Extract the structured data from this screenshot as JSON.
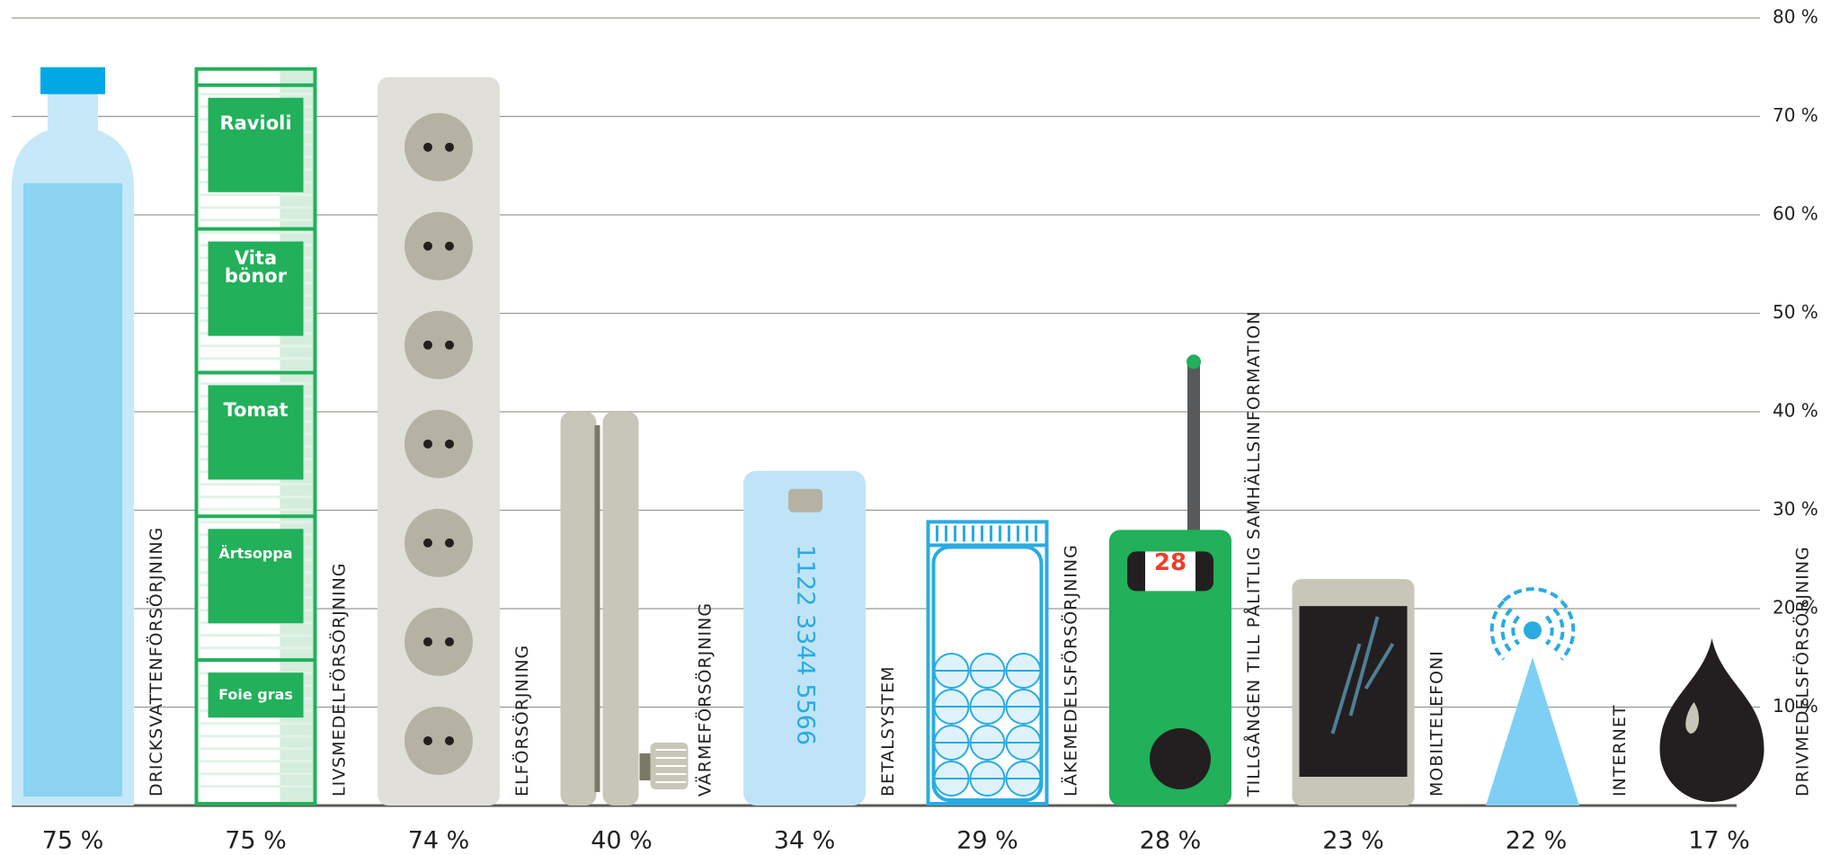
{
  "chart_data": {
    "type": "pictogram",
    "categories": [
      "DRICKSVATTENFÖRSÖRJNING",
      "LIVSMEDELFÖRSÖRJNING",
      "ELFÖRSÖRJNING",
      "VÄRMEFÖRSÖRJNING",
      "BETALSYSTEM",
      "LÄKEMEDELSFÖRSÖRJNING",
      "TILLGÅNGEN TILL PÅLITLIG SAMHÄLLSINFORMATION",
      "MOBILTELEFONI",
      "INTERNET",
      "DRIVMEDELSFÖRSÖRJNING"
    ],
    "values": [
      75,
      75,
      74,
      40,
      34,
      29,
      28,
      23,
      22,
      17
    ],
    "value_labels": [
      "75 %",
      "75 %",
      "74 %",
      "40 %",
      "34 %",
      "29 %",
      "28 %",
      "23 %",
      "22 %",
      "17 %"
    ],
    "ylim": [
      0,
      80
    ],
    "yticks": [
      {
        "value": 10,
        "label": "10 %"
      },
      {
        "value": 20,
        "label": "20 %"
      },
      {
        "value": 30,
        "label": "30 %"
      },
      {
        "value": 40,
        "label": "40 %"
      },
      {
        "value": 50,
        "label": "50 %"
      },
      {
        "value": 60,
        "label": "60 %"
      },
      {
        "value": 70,
        "label": "70 %"
      },
      {
        "value": 80,
        "label": "80 %"
      }
    ],
    "grid": true,
    "food_labels": [
      "Ravioli",
      "Vita bönor",
      "Tomat",
      "Ärtsoppa",
      "Foie gras"
    ],
    "card_number": "1122 3344 5566",
    "radio_display": "28"
  }
}
